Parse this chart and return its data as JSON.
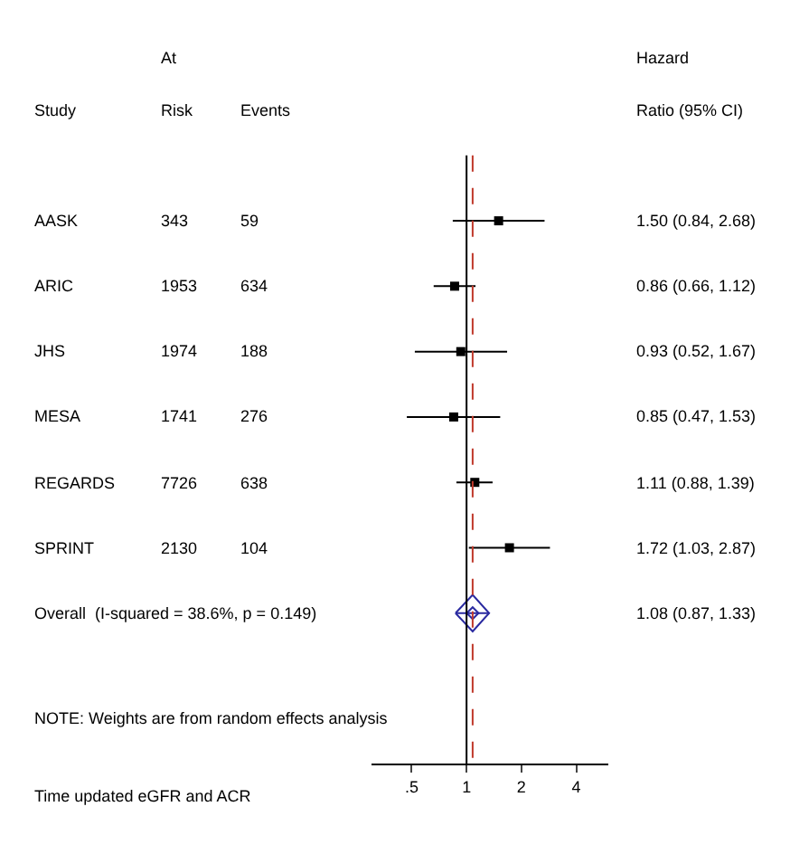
{
  "chart_data": {
    "type": "scatter",
    "orientation": "horizontal",
    "categories": [
      "AASK",
      "ARIC",
      "JHS",
      "MESA",
      "REGARDS",
      "SPRINT",
      "Overall  (I-squared = 38.6%, p = 0.149)"
    ],
    "series": [
      {
        "color": "#000000",
        "marker": "square",
        "values": [
          1.5,
          0.86,
          0.93,
          0.85,
          1.11,
          1.72,
          null
        ],
        "errors": [
          [
            0.84,
            2.68
          ],
          [
            0.66,
            1.12
          ],
          [
            0.52,
            1.67
          ],
          [
            0.47,
            1.53
          ],
          [
            0.88,
            1.39
          ],
          [
            1.03,
            2.87
          ],
          null
        ],
        "value_labels": [
          "1.50 (0.84, 2.68)",
          "0.86 (0.66, 1.12)",
          "0.93 (0.52, 1.67)",
          "0.85 (0.47, 1.53)",
          "1.11 (0.88, 1.39)",
          "1.72 (1.03, 2.87)",
          null
        ]
      },
      {
        "color": "#2a2aa0",
        "marker": "diamond",
        "values": [
          null,
          null,
          null,
          null,
          null,
          null,
          1.08
        ],
        "errors": [
          null,
          null,
          null,
          null,
          null,
          null,
          [
            0.87,
            1.33
          ]
        ]
      }
    ],
    "log": "x",
    "xlim": [
      0.3,
      6
    ],
    "xticks": [
      {
        "value": 0.5,
        "label": ".5"
      },
      1,
      2,
      4
    ],
    "ref_lines": [
      {
        "axis": "x",
        "value": 1,
        "color": "#000000",
        "line_style": "solid"
      },
      {
        "axis": "x",
        "value": 1.08,
        "color": "#c0392b",
        "line_style": "dashed"
      }
    ],
    "grid": false,
    "annotations": [
      "At",
      "Hazard",
      "Study",
      "Risk",
      "Events",
      "Ratio (95% CI)",
      "343",
      "59",
      "1953",
      "634",
      "1974",
      "188",
      "1741",
      "276",
      "7726",
      "638",
      "2130",
      "104",
      "1.08 (0.87, 1.33)",
      "NOTE: Weights are from random effects analysis",
      "Time updated eGFR and ACR"
    ]
  }
}
